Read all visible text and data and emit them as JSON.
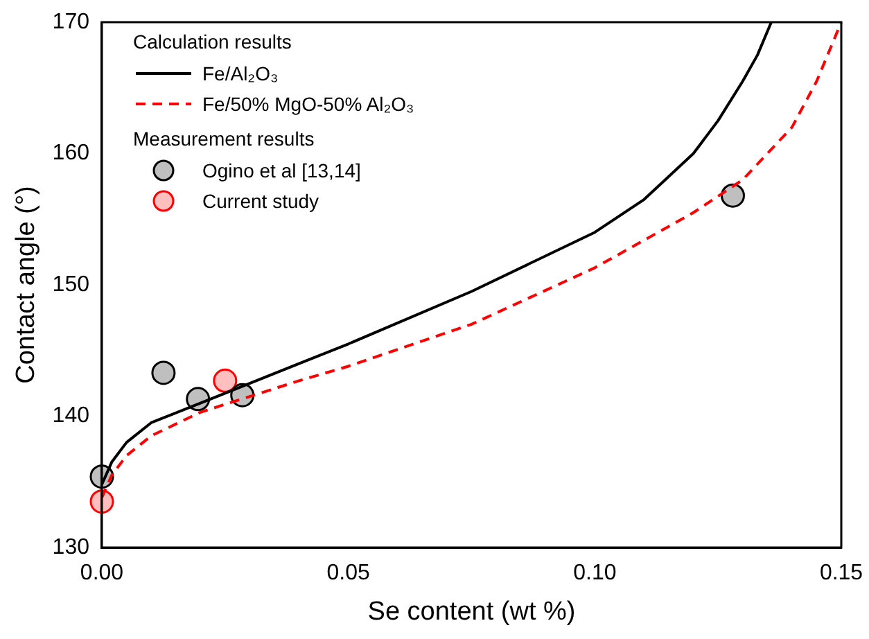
{
  "chart_data": {
    "type": "line",
    "xlabel": "Se content (wt %)",
    "ylabel": "Contact angle (°)",
    "xlim": [
      0,
      0.15
    ],
    "xticks": [
      {
        "value": 0,
        "label": "0.00"
      },
      0.05,
      {
        "value": 0.1,
        "label": "0.10"
      },
      0.15
    ],
    "ylim": [
      130,
      170
    ],
    "yticks": [
      130,
      140,
      150,
      160,
      170
    ],
    "legend": "top left",
    "grid": false,
    "annotations": [
      "Calculation results",
      "Measurement results"
    ],
    "series": [
      {
        "name": "Fe/Al₂O₃",
        "color": "#000000",
        "line_style": "solid",
        "marker": "none",
        "x": [
          0,
          0.002,
          0.005,
          0.01,
          0.02,
          0.03,
          0.04,
          0.05,
          0.075,
          0.1,
          0.11,
          0.12,
          0.125,
          0.13,
          0.133,
          0.1358
        ],
        "values": [
          134.8,
          136.5,
          138,
          139.5,
          141,
          142.5,
          144,
          145.5,
          149.5,
          154,
          156.5,
          160,
          162.5,
          165.5,
          167.5,
          170
        ]
      },
      {
        "name": "Fe/50% MgO-50% Al₂O₃",
        "color": "#ff0000",
        "line_style": "dashed",
        "marker": "none",
        "x": [
          0,
          0.002,
          0.005,
          0.01,
          0.02,
          0.03,
          0.04,
          0.05,
          0.075,
          0.1,
          0.12,
          0.13,
          0.14,
          0.145,
          0.15
        ],
        "values": [
          133.8,
          135.5,
          137,
          138.5,
          140.3,
          141.5,
          142.7,
          143.8,
          147,
          151.3,
          155.5,
          158,
          162,
          165.5,
          170
        ]
      },
      {
        "name": "Ogino et al [13,14]",
        "type": "scatter",
        "color": "#000000",
        "marker": "circle",
        "x": [
          0,
          0.0125,
          0.0195,
          0.0285,
          0.128
        ],
        "values": [
          135.4,
          143.3,
          141.3,
          141.6,
          156.8
        ]
      },
      {
        "name": "Current study",
        "type": "scatter",
        "color": "#ff0000",
        "marker": "circle",
        "x": [
          0,
          0.025
        ],
        "values": [
          133.5,
          142.7
        ]
      }
    ]
  }
}
